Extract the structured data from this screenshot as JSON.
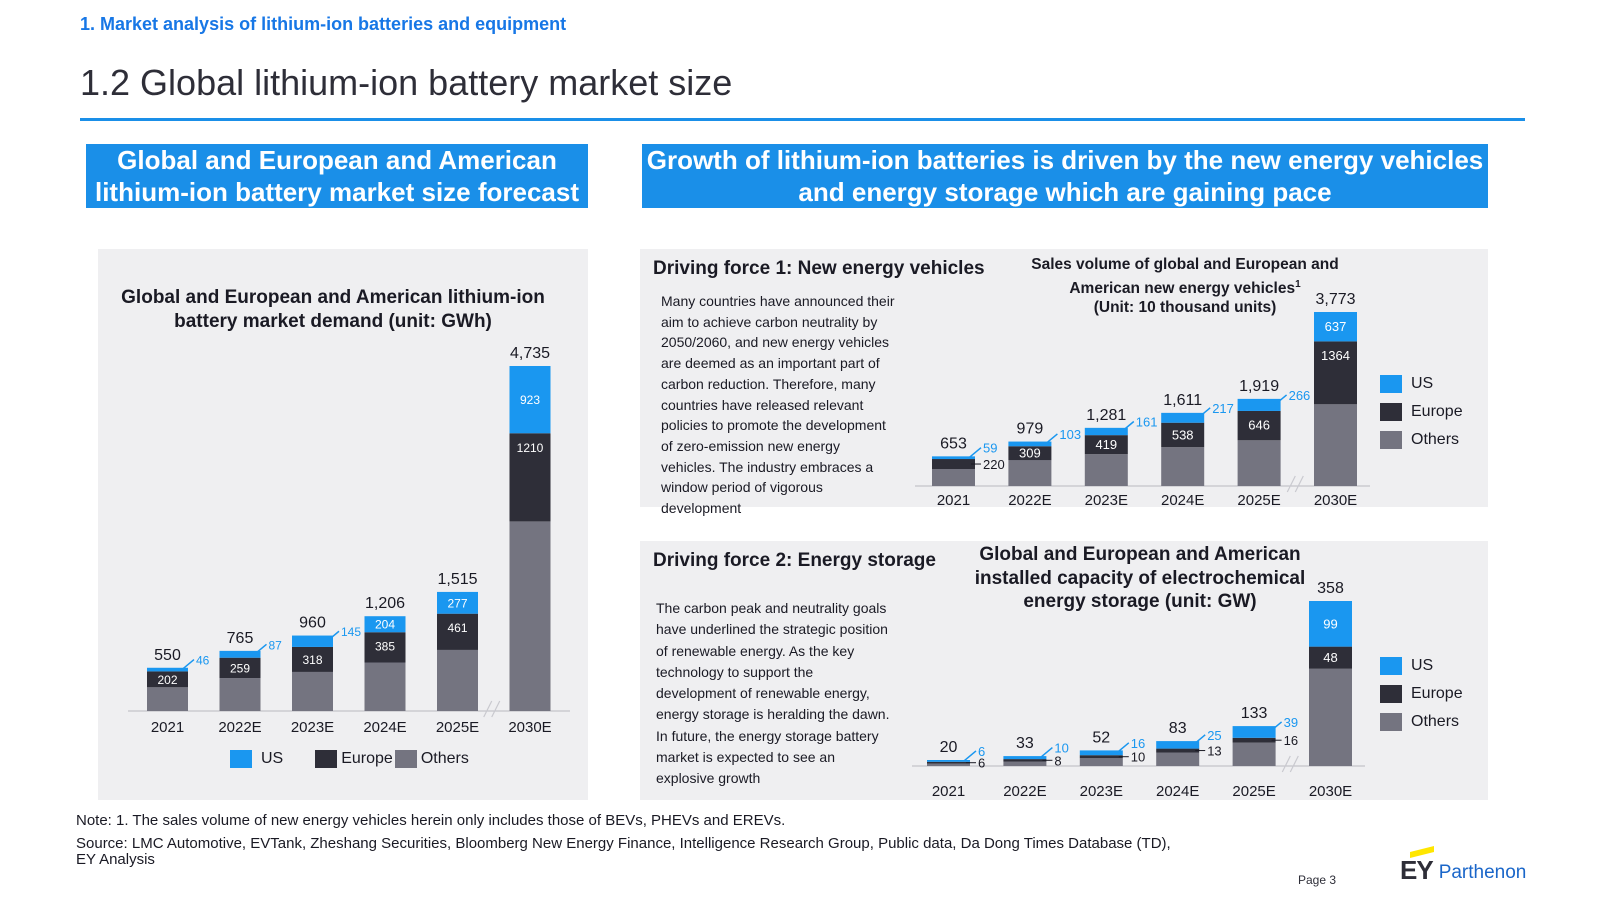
{
  "header": {
    "section_label": "1. Market analysis of lithium-ion batteries and equipment",
    "page_title": "1.2  Global lithium-ion battery market size"
  },
  "banners": {
    "left": "Global and European and American lithium-ion battery market size forecast",
    "right": "Growth of lithium-ion batteries is driven by the new energy vehicles and energy storage which are gaining pace"
  },
  "colors": {
    "US": "#1a97f0",
    "Europe": "#2e2e38",
    "Others": "#747480",
    "accent": "#1a8fe8"
  },
  "driving_force_1": {
    "heading": "Driving force 1: New energy vehicles",
    "text": "Many countries have announced their aim to achieve carbon neutrality by 2050/2060, and new energy vehicles are deemed as an important part of carbon reduction. Therefore, many countries have released relevant policies to promote the development of zero-emission new energy vehicles. The industry embraces a window period of vigorous development"
  },
  "driving_force_2": {
    "heading": "Driving force 2: Energy storage",
    "text": "The carbon peak and neutrality goals have underlined the strategic position of renewable energy. As the key technology to support the development of renewable energy, energy storage is heralding the dawn. In future, the energy storage battery market is expected to see an explosive growth"
  },
  "legend": {
    "us": "US",
    "europe": "Europe",
    "others": "Others"
  },
  "chart_data": [
    {
      "type": "bar",
      "stacked": true,
      "title": "Global and European and American lithium-ion battery market demand (unit: GWh)",
      "categories": [
        "2021",
        "2022E",
        "2023E",
        "2024E",
        "2025E",
        "2030E"
      ],
      "totals": [
        550,
        765,
        960,
        1206,
        1515,
        4735
      ],
      "total_labels": [
        "550",
        "765",
        "960",
        "1,206",
        "1,515",
        "4,735"
      ],
      "series": [
        {
          "name": "Others",
          "values": [
            302,
            419,
            497,
            617,
            777,
            2602
          ]
        },
        {
          "name": "Europe",
          "values": [
            202,
            259,
            318,
            385,
            461,
            1210
          ]
        },
        {
          "name": "US",
          "values": [
            46,
            87,
            145,
            204,
            277,
            923
          ]
        }
      ],
      "legend": "bottom"
    },
    {
      "type": "bar",
      "stacked": true,
      "title": "Sales volume of global and European and American new energy vehicles",
      "title_superscript": "1",
      "subtitle": "(Unit: 10 thousand units)",
      "categories": [
        "2021",
        "2022E",
        "2023E",
        "2024E",
        "2025E",
        "2030E"
      ],
      "totals": [
        653,
        979,
        1281,
        1611,
        1919,
        3773
      ],
      "total_labels": [
        "653",
        "979",
        "1,281",
        "1,611",
        "1,919",
        "3,773"
      ],
      "series": [
        {
          "name": "Others",
          "values": [
            374,
            567,
            701,
            856,
            1007,
            1772
          ]
        },
        {
          "name": "Europe",
          "values": [
            220,
            309,
            419,
            538,
            646,
            1364
          ]
        },
        {
          "name": "US",
          "values": [
            59,
            103,
            161,
            217,
            266,
            637
          ]
        }
      ],
      "legend": "right"
    },
    {
      "type": "bar",
      "stacked": true,
      "title": "Global and European and American installed capacity of electrochemical energy storage (unit: GW)",
      "categories": [
        "2021",
        "2022E",
        "2023E",
        "2024E",
        "2025E",
        "2030E"
      ],
      "totals": [
        20,
        33,
        52,
        83,
        133,
        358
      ],
      "total_labels": [
        "20",
        "33",
        "52",
        "83",
        "133",
        "358"
      ],
      "series": [
        {
          "name": "Others",
          "values": [
            8,
            15,
            26,
            45,
            78,
            211
          ]
        },
        {
          "name": "Europe",
          "values": [
            6,
            8,
            10,
            13,
            16,
            48
          ]
        },
        {
          "name": "US",
          "values": [
            6,
            10,
            16,
            25,
            39,
            99
          ]
        }
      ],
      "legend": "right"
    }
  ],
  "footer": {
    "note": "Note: 1. The sales volume of new energy vehicles herein only includes those of BEVs, PHEVs and EREVs.",
    "source_line1": "Source: LMC Automotive, EVTank, Zheshang Securities, Bloomberg New Energy Finance, Intelligence Research Group, Public data, Da Dong Times Database (TD),",
    "source_line2": "EY Analysis",
    "page": "Page 3",
    "logo_ey": "EY",
    "logo_parthenon": "Parthenon"
  }
}
